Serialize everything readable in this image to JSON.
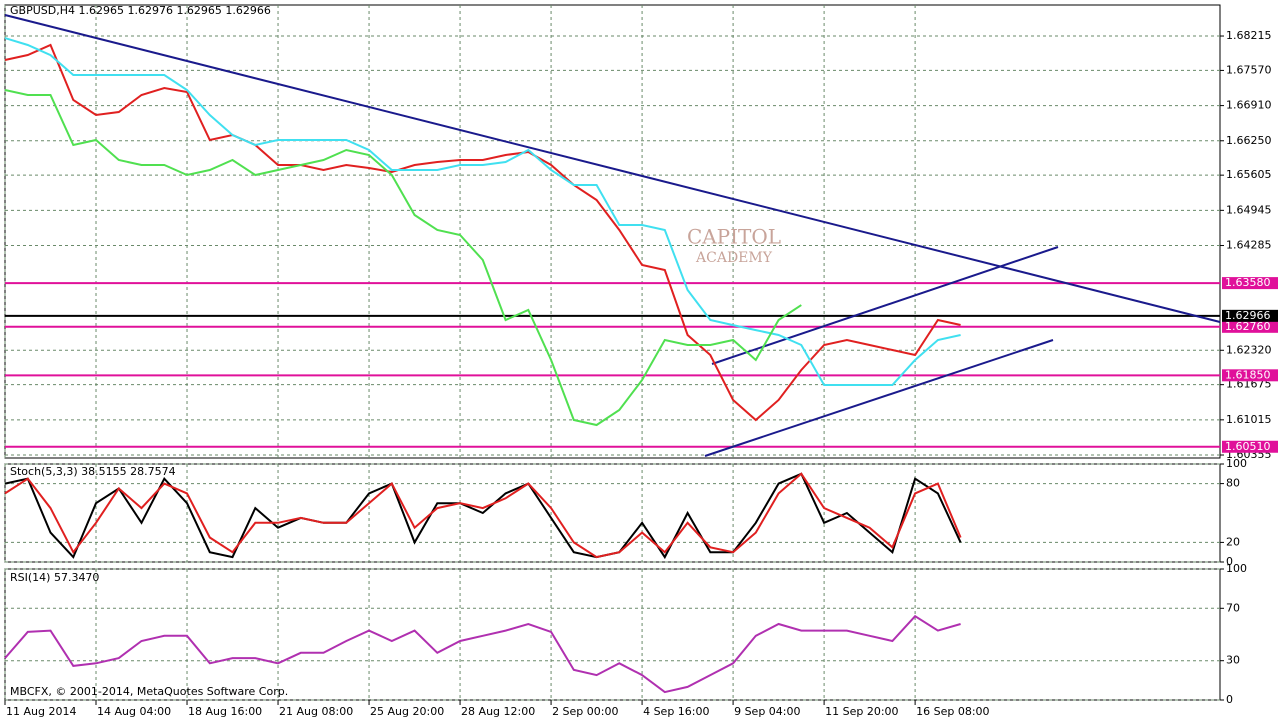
{
  "chart_data": [
    {
      "type": "line",
      "title": "GBPUSD,H4 1.62965 1.62976 1.62965 1.62966",
      "watermark": [
        "CAPITOL",
        "ACADEMY"
      ],
      "x": [
        0,
        4,
        8,
        12,
        16,
        20,
        24,
        28,
        32,
        36,
        40,
        44,
        48,
        52,
        56,
        60,
        64,
        68,
        72,
        76,
        80,
        84,
        88,
        92,
        96,
        100,
        104,
        108,
        112,
        116,
        120,
        124,
        128,
        132,
        136,
        140,
        144,
        148,
        152,
        156,
        160,
        164,
        168
      ],
      "xlim": [
        0,
        213.6
      ],
      "ylim": [
        1.60299,
        1.68797
      ],
      "grid": true,
      "yticks": [
        1.68215,
        {
          "value": 1.6757,
          "label": "1.67570"
        },
        {
          "value": 1.6691,
          "label": "1.66910"
        },
        {
          "value": 1.6625,
          "label": "1.66250"
        },
        1.65605,
        1.64945,
        1.64285,
        {
          "value": 1.6232,
          "label": "1.62320"
        },
        1.61675,
        1.61015,
        1.60355
      ],
      "levels": [
        {
          "value": 1.6358,
          "label": "1.63580",
          "color": "#e0109a"
        },
        {
          "value": 1.6276,
          "label": "1.62760",
          "color": "#e0109a"
        },
        {
          "value": 1.6185,
          "label": "1.61850",
          "color": "#e0109a"
        },
        {
          "value": 1.6051,
          "label": "1.60510",
          "color": "#e0109a"
        },
        {
          "value": 1.62966,
          "label": "1.62966",
          "color": "#000000"
        }
      ],
      "series": [
        {
          "color": "#e02020",
          "values": [
            1.67765,
            1.67859,
            1.68046,
            1.67015,
            1.66733,
            1.66789,
            1.67108,
            1.6724,
            1.67165,
            1.66264,
            1.66358,
            1.6617,
            1.65795,
            1.65795,
            1.65701,
            1.65795,
            1.65739,
            1.65664,
            1.65795,
            1.65851,
            1.65889,
            1.65889,
            1.65983,
            1.66039,
            1.65795,
            1.6542,
            1.65139,
            1.64576,
            1.63919,
            1.63826,
            1.62606,
            1.62231,
            1.61387,
            1.61012,
            1.61387,
            1.6195,
            1.62419,
            1.62513,
            1.62419,
            1.62325,
            1.62231,
            1.62888,
            1.62794
          ]
        },
        {
          "color": "#40e0f0",
          "values": [
            1.68177,
            1.68046,
            1.67858,
            1.67483,
            1.67483,
            1.67483,
            1.67483,
            1.67483,
            1.67202,
            1.66733,
            1.66358,
            1.6617,
            1.66264,
            1.66264,
            1.66264,
            1.66264,
            1.66076,
            1.65701,
            1.65701,
            1.65701,
            1.65795,
            1.65795,
            1.65851,
            1.66076,
            1.65701,
            1.6542,
            1.6542,
            1.64669,
            1.64669,
            1.64576,
            1.6345,
            1.62887,
            1.62793,
            1.62699,
            1.62606,
            1.62418,
            1.61668,
            1.61668,
            1.61668,
            1.61668,
            1.62137,
            1.62512,
            1.62606
          ]
        },
        {
          "color": "#50e050",
          "values": [
            1.67202,
            1.67108,
            1.67108,
            1.6617,
            1.66264,
            1.65889,
            1.65795,
            1.65795,
            1.65607,
            1.65701,
            1.65889,
            1.65607,
            1.65701,
            1.65795,
            1.65889,
            1.66076,
            1.65983,
            1.65607,
            1.64857,
            1.64576,
            1.64482,
            1.64013,
            1.62887,
            1.63075,
            1.62137,
            1.61012,
            1.60918,
            1.61199,
            1.61762,
            1.62512,
            1.62418,
            1.62418,
            1.62512,
            1.62137,
            1.62887,
            1.63168,
            null,
            null,
            null,
            null,
            null,
            null,
            null
          ]
        }
      ]
    },
    {
      "type": "line",
      "title": "Stoch(5,3,3) 38.5155 28.7574",
      "x": [
        0,
        4,
        8,
        12,
        16,
        20,
        24,
        28,
        32,
        36,
        40,
        44,
        48,
        52,
        56,
        60,
        64,
        68,
        72,
        76,
        80,
        84,
        88,
        92,
        96,
        100,
        104,
        108,
        112,
        116,
        120,
        124,
        128,
        132,
        136,
        140,
        144,
        148,
        152,
        156,
        160,
        164,
        168
      ],
      "xlim": [
        0,
        213.6
      ],
      "ylim": [
        0,
        100
      ],
      "yticks": [
        0,
        20,
        80,
        100
      ],
      "grid": true,
      "series": [
        {
          "color": "#000000",
          "values": [
            80,
            85,
            30,
            5,
            60,
            75,
            40,
            85,
            60,
            10,
            5,
            55,
            35,
            45,
            40,
            40,
            70,
            80,
            20,
            60,
            60,
            50,
            70,
            80,
            45,
            10,
            5,
            10,
            40,
            5,
            50,
            10,
            10,
            40,
            80,
            90,
            40,
            50,
            30,
            10,
            85,
            70,
            20
          ]
        },
        {
          "color": "#e02020",
          "values": [
            70,
            85,
            55,
            10,
            40,
            75,
            55,
            80,
            70,
            25,
            10,
            40,
            40,
            45,
            40,
            40,
            60,
            80,
            35,
            55,
            60,
            55,
            65,
            80,
            55,
            20,
            5,
            10,
            30,
            10,
            40,
            15,
            10,
            30,
            70,
            90,
            55,
            45,
            35,
            15,
            70,
            80,
            25
          ]
        }
      ]
    },
    {
      "type": "line",
      "title": "RSI(14) 57.3470",
      "footer": "MBCFX, © 2001-2014, MetaQuotes Software Corp.",
      "x": [
        0,
        4,
        8,
        12,
        16,
        20,
        24,
        28,
        32,
        36,
        40,
        44,
        48,
        52,
        56,
        60,
        64,
        68,
        72,
        76,
        80,
        84,
        88,
        92,
        96,
        100,
        104,
        108,
        112,
        116,
        120,
        124,
        128,
        132,
        136,
        140,
        144,
        148,
        152,
        156,
        160,
        164,
        168
      ],
      "xlim": [
        0,
        213.6
      ],
      "ylim": [
        0,
        100
      ],
      "yticks": [
        0,
        30,
        70,
        100
      ],
      "grid": true,
      "xticks": [
        {
          "value": 0,
          "label": "11 Aug 2014"
        },
        {
          "value": 16,
          "label": "14 Aug 04:00"
        },
        {
          "value": 32,
          "label": "18 Aug 16:00"
        },
        {
          "value": 48,
          "label": "21 Aug 08:00"
        },
        {
          "value": 64,
          "label": "25 Aug 20:00"
        },
        {
          "value": 80,
          "label": "28 Aug 12:00"
        },
        {
          "value": 96,
          "label": "2 Sep 00:00"
        },
        {
          "value": 112,
          "label": "4 Sep 16:00"
        },
        {
          "value": 128,
          "label": "9 Sep 04:00"
        },
        {
          "value": 144,
          "label": "11 Sep 20:00"
        },
        {
          "value": 160,
          "label": "16 Sep 08:00"
        }
      ],
      "series": [
        {
          "color": "#b030b0",
          "values": [
            32,
            52,
            53,
            26,
            28,
            32,
            45,
            49,
            49,
            28,
            32,
            32,
            28,
            36,
            36,
            45,
            53,
            45,
            53,
            36,
            45,
            49,
            53,
            58,
            52,
            23,
            19,
            28,
            19,
            6,
            10,
            19,
            28,
            49,
            58,
            53,
            53,
            53,
            49,
            45,
            64,
            53,
            58
          ]
        }
      ]
    }
  ]
}
